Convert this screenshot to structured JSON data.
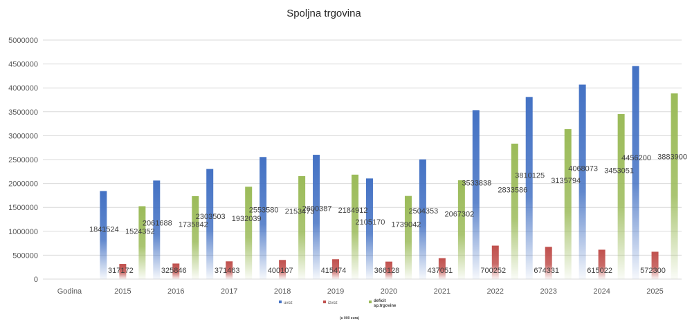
{
  "chart_data": {
    "type": "bar",
    "title": "Spoljna trgovina",
    "note": "(u 000 eura)",
    "categories": [
      "Godina",
      "2015",
      "2016",
      "2017",
      "2018",
      "2019",
      "2020",
      "2021",
      "2022",
      "2023",
      "2024",
      "2025"
    ],
    "series": [
      {
        "name": "uvoz",
        "values": [
          null,
          1841524,
          2061688,
          2303503,
          2553580,
          2600387,
          2105170,
          2504353,
          3533838,
          3810125,
          4068073,
          4456200
        ]
      },
      {
        "name": "izvoz",
        "values": [
          null,
          317172,
          325846,
          371463,
          400107,
          415474,
          366128,
          437051,
          700252,
          674331,
          615022,
          572300
        ]
      },
      {
        "name": "deficit sp.trgovine",
        "name_lines": [
          "deficit",
          "sp.trgovine"
        ],
        "values": [
          null,
          1524352,
          1735842,
          1932039,
          2153473,
          2184912,
          1739042,
          2067302,
          2833586,
          3135794,
          3453051,
          3883900
        ]
      }
    ],
    "colors": [
      "#4472c4",
      "#c0504d",
      "#9bbb59"
    ],
    "ylim": [
      0,
      5000000
    ],
    "yticks": [
      0,
      500000,
      1000000,
      1500000,
      2000000,
      2500000,
      3000000,
      3500000,
      4000000,
      4500000,
      5000000
    ],
    "grid": true,
    "legend": "bottom"
  }
}
